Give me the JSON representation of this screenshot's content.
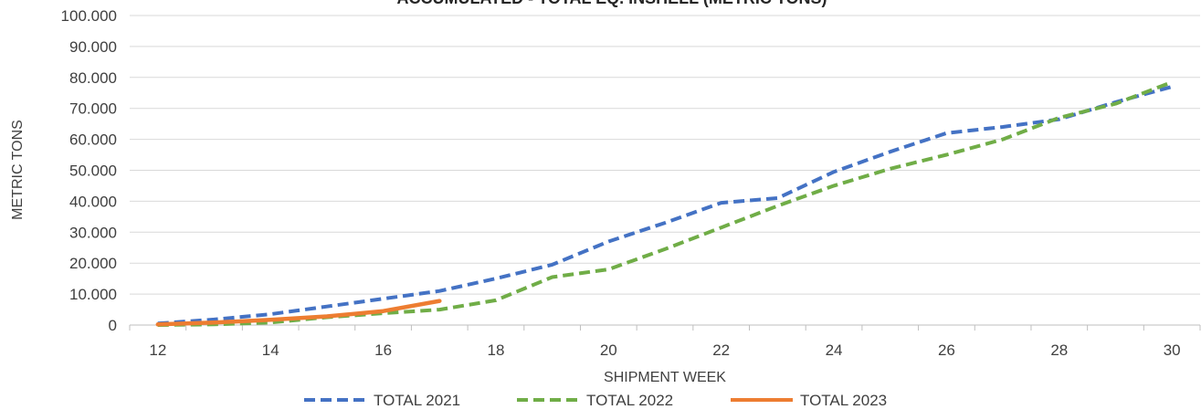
{
  "chart_data": {
    "type": "line",
    "title": "ACCUMULATED - TOTAL EQ. INSHELL (METRIC TONS)",
    "xlabel": "SHIPMENT WEEK",
    "ylabel": "METRIC TONS",
    "xlim": [
      12,
      30
    ],
    "ylim": [
      0,
      100000
    ],
    "x_ticks": [
      12,
      14,
      16,
      18,
      20,
      22,
      24,
      26,
      28,
      30
    ],
    "y_ticks": [
      0,
      10000,
      20000,
      30000,
      40000,
      50000,
      60000,
      70000,
      80000,
      90000,
      100000
    ],
    "y_tick_labels": [
      "0",
      "10.000",
      "20.000",
      "30.000",
      "40.000",
      "50.000",
      "60.000",
      "70.000",
      "80.000",
      "90.000",
      "100.000"
    ],
    "grid": true,
    "legend_position": "bottom",
    "series": [
      {
        "name": "TOTAL 2021",
        "color": "#4472C4",
        "style": "dashed",
        "x": [
          12,
          13,
          14,
          15,
          16,
          17,
          18,
          19,
          20,
          21,
          22,
          23,
          24,
          25,
          26,
          27,
          28,
          29,
          30
        ],
        "y": [
          500,
          1800,
          3500,
          6000,
          8500,
          11000,
          15000,
          19500,
          27000,
          33000,
          39500,
          41000,
          49500,
          56000,
          62000,
          64000,
          66500,
          72000,
          77000
        ]
      },
      {
        "name": "TOTAL 2022",
        "color": "#70AD47",
        "style": "dashed",
        "x": [
          12,
          13,
          14,
          15,
          16,
          17,
          18,
          19,
          20,
          21,
          22,
          23,
          24,
          25,
          26,
          27,
          28,
          29,
          30
        ],
        "y": [
          0,
          200,
          800,
          2500,
          3800,
          5000,
          8000,
          15500,
          18000,
          24500,
          31500,
          38500,
          45000,
          50500,
          55000,
          60000,
          67000,
          71500,
          78500
        ]
      },
      {
        "name": "TOTAL 2023",
        "color": "#ED7D31",
        "style": "solid",
        "x": [
          12,
          13,
          14,
          15,
          16,
          17
        ],
        "y": [
          200,
          800,
          1700,
          2800,
          4500,
          7800
        ]
      }
    ]
  }
}
